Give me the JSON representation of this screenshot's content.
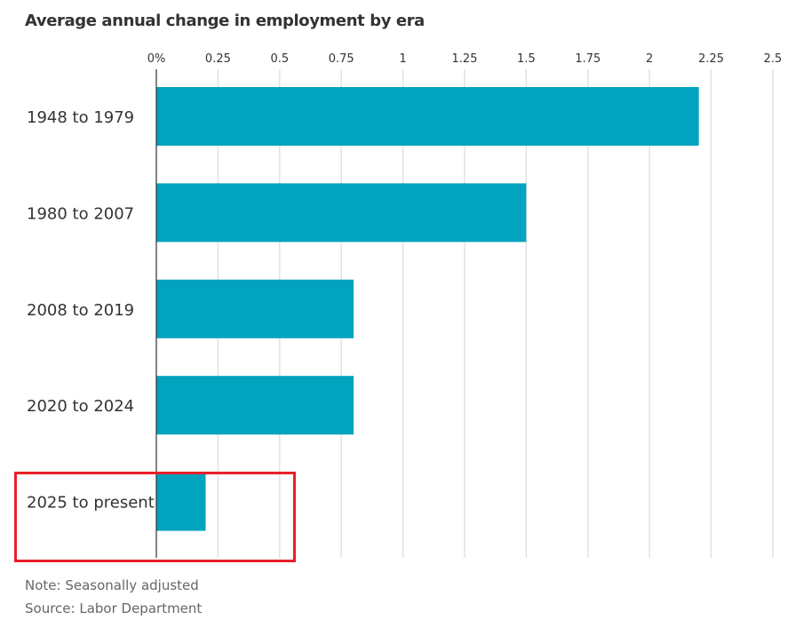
{
  "chart_data": {
    "type": "bar",
    "orientation": "horizontal",
    "title": "Average annual change in employment by era",
    "categories": [
      "1948 to 1979",
      "1980 to 2007",
      "2008 to 2019",
      "2020 to 2024",
      "2025 to present"
    ],
    "values": [
      2.2,
      1.5,
      0.8,
      0.8,
      0.2
    ],
    "xlabel": "",
    "ylabel": "",
    "xlim": [
      0,
      2.5
    ],
    "x_ticks": [
      0,
      0.25,
      0.5,
      0.75,
      1,
      1.25,
      1.5,
      1.75,
      2,
      2.25,
      2.5
    ],
    "x_tick_labels": [
      "0%",
      "0.25",
      "0.5",
      "0.75",
      "1",
      "1.25",
      "1.5",
      "1.75",
      "2",
      "2.25",
      "2.5"
    ],
    "x_axis_position": "top",
    "grid": true,
    "bar_color": "#02a3bf",
    "highlighted_category": "2025 to present",
    "highlight_color": "#e8202a"
  },
  "notes": {
    "note": "Note: Seasonally adjusted",
    "source": "Source: Labor Department"
  }
}
